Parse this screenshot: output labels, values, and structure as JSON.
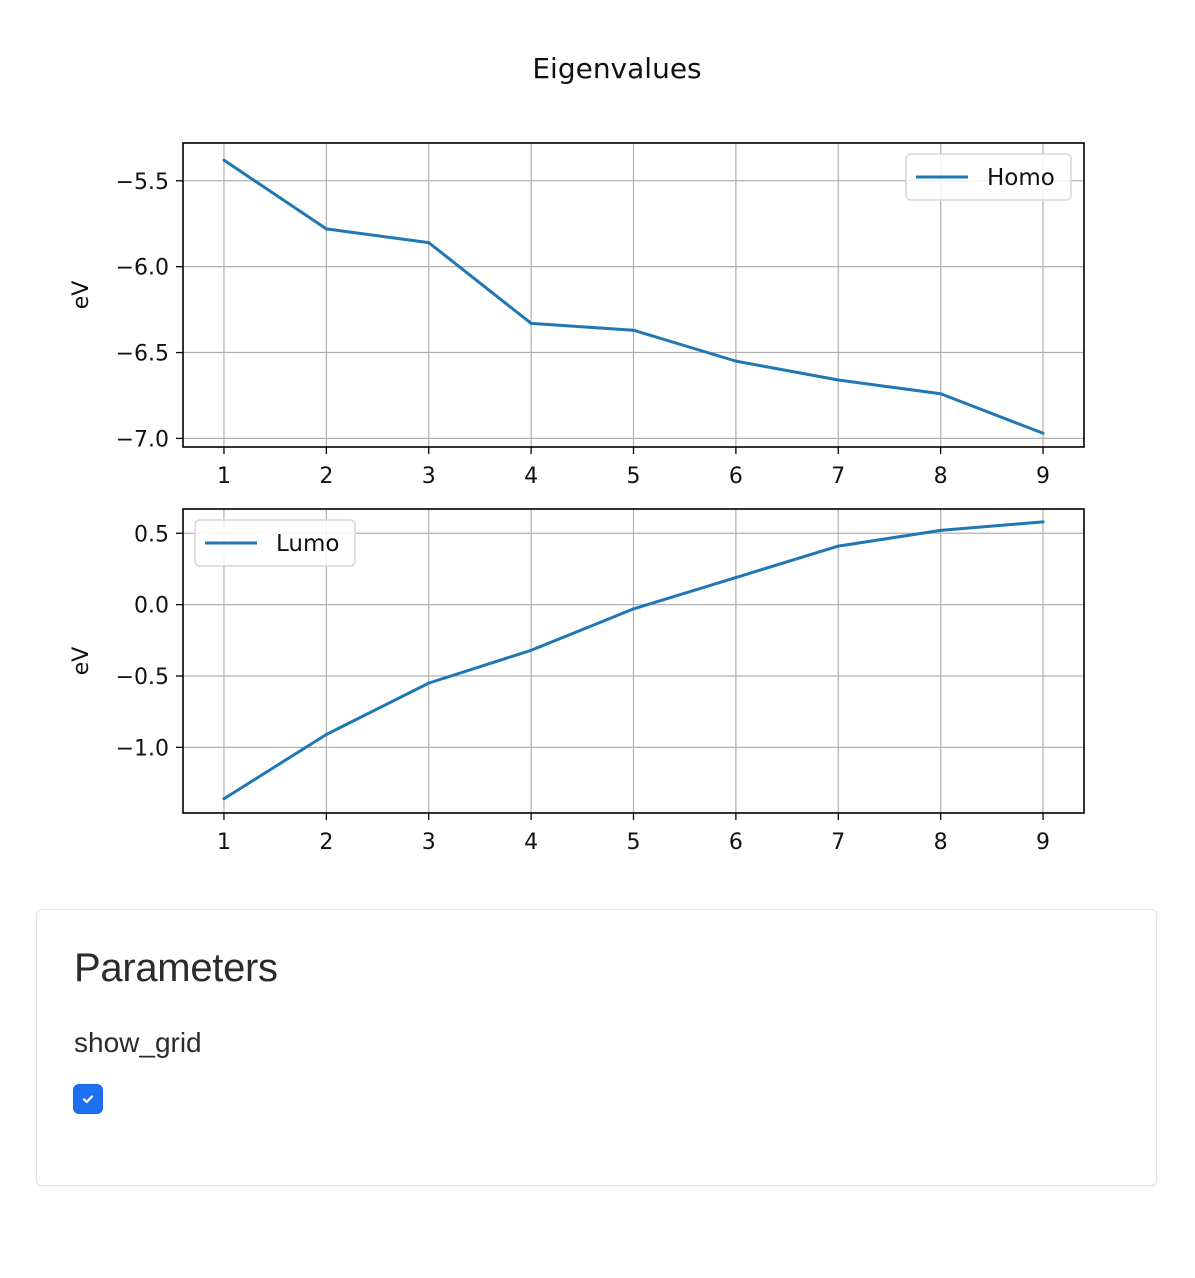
{
  "figure": {
    "title": "Eigenvalues"
  },
  "chart_data": [
    {
      "type": "line",
      "ylabel": "eV",
      "xlabel": "",
      "x": [
        1,
        2,
        3,
        4,
        5,
        6,
        7,
        8,
        9
      ],
      "xlim": [
        0.6,
        9.4
      ],
      "ylim": [
        -7.05,
        -5.28
      ],
      "xticks": [
        1,
        2,
        3,
        4,
        5,
        6,
        7,
        8,
        9
      ],
      "yticks": [
        -7.0,
        -6.5,
        -6.0,
        -5.5
      ],
      "ytick_labels": [
        "−7.0",
        "−6.5",
        "−6.0",
        "−5.5"
      ],
      "grid": true,
      "legend_position": "upper right",
      "series": [
        {
          "name": "Homo",
          "color": "#1f77b4",
          "values": [
            -5.38,
            -5.78,
            -5.86,
            -6.33,
            -6.37,
            -6.55,
            -6.66,
            -6.74,
            -6.97
          ]
        }
      ]
    },
    {
      "type": "line",
      "ylabel": "eV",
      "xlabel": "",
      "x": [
        1,
        2,
        3,
        4,
        5,
        6,
        7,
        8,
        9
      ],
      "xlim": [
        0.6,
        9.4
      ],
      "ylim": [
        -1.46,
        0.67
      ],
      "xticks": [
        1,
        2,
        3,
        4,
        5,
        6,
        7,
        8,
        9
      ],
      "yticks": [
        -1.0,
        -0.5,
        0.0,
        0.5
      ],
      "ytick_labels": [
        "−1.0",
        "−0.5",
        "0.0",
        "0.5"
      ],
      "grid": true,
      "legend_position": "upper left",
      "series": [
        {
          "name": "Lumo",
          "color": "#1f77b4",
          "values": [
            -1.36,
            -0.91,
            -0.55,
            -0.32,
            -0.03,
            0.19,
            0.41,
            0.52,
            0.58
          ]
        }
      ]
    }
  ],
  "parameters": {
    "title": "Parameters",
    "show_grid": {
      "label": "show_grid",
      "checked": true
    }
  }
}
